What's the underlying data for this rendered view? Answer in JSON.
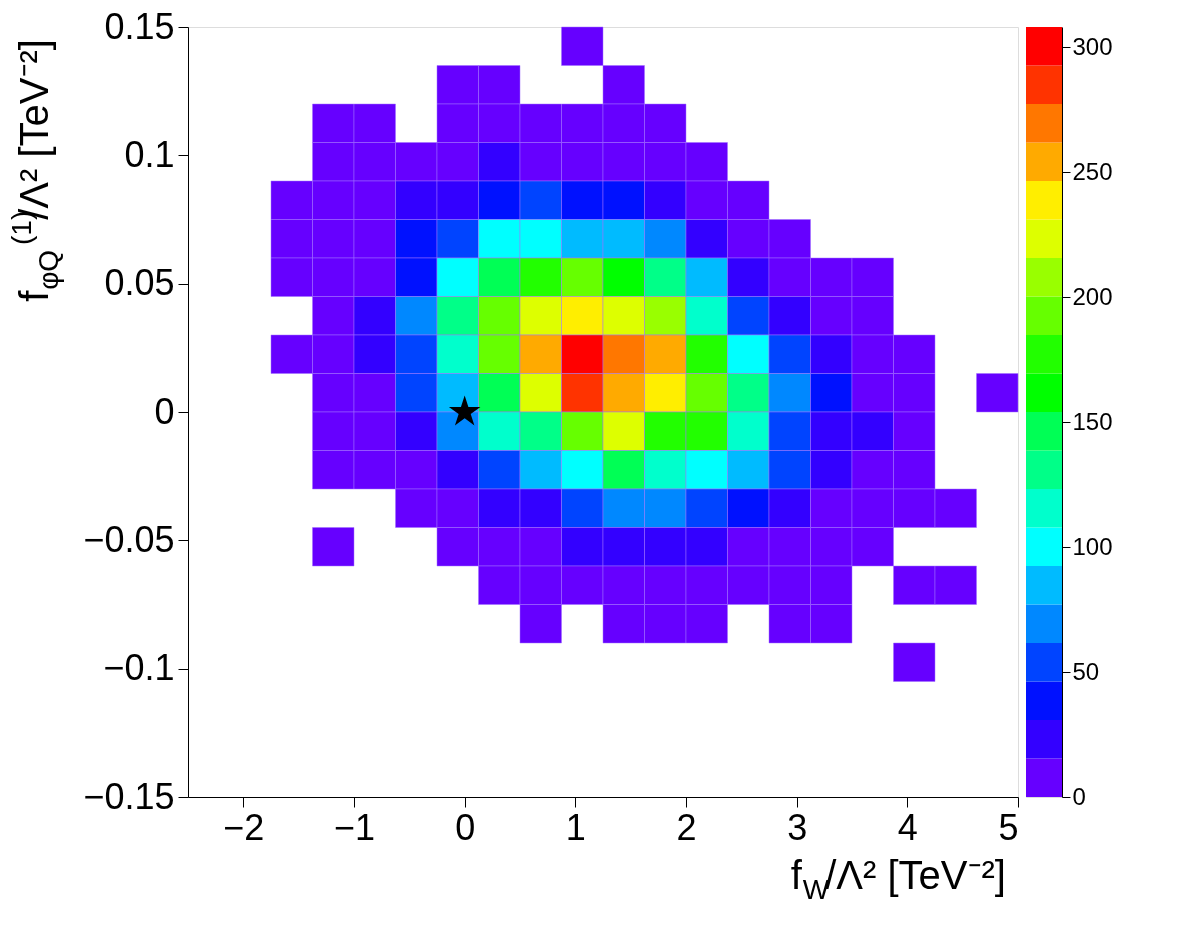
{
  "chart_data": {
    "type": "heatmap",
    "xlabel": "f$_{W}$/Λ² [TeV⁻²]",
    "ylabel": "f$_{φQ}$$^{(1)}$/Λ² [TeV⁻²]",
    "x": [
      -2.3125,
      -1.9375,
      -1.5625,
      -1.1875,
      -0.8125,
      -0.4375,
      -0.0625,
      0.3125,
      0.6875,
      1.0625,
      1.4375,
      1.8125,
      2.1875,
      2.5625,
      2.9375,
      3.3125,
      3.6875,
      4.0625,
      4.4375,
      4.8125
    ],
    "y": [
      0.1425,
      0.1275,
      0.1125,
      0.0975,
      0.0825,
      0.0675,
      0.0525,
      0.0375,
      0.0225,
      0.0075,
      -0.0075,
      -0.0225,
      -0.0375,
      -0.0525,
      -0.0675,
      -0.0825,
      -0.0975
    ],
    "cells": [
      [
        null,
        null,
        null,
        null,
        null,
        null,
        null,
        null,
        null,
        8,
        null,
        null,
        null,
        null,
        null,
        null,
        null,
        null,
        null,
        null
      ],
      [
        null,
        null,
        null,
        null,
        null,
        null,
        8,
        8,
        null,
        null,
        8,
        null,
        null,
        null,
        null,
        null,
        null,
        null,
        null,
        null
      ],
      [
        null,
        null,
        null,
        8,
        8,
        null,
        8,
        8,
        8,
        8,
        8,
        8,
        null,
        null,
        null,
        null,
        null,
        null,
        null,
        null
      ],
      [
        null,
        null,
        null,
        8,
        8,
        8,
        8,
        23,
        8,
        8,
        8,
        8,
        8,
        null,
        null,
        null,
        null,
        null,
        null,
        null
      ],
      [
        null,
        null,
        8,
        8,
        8,
        23,
        23,
        39,
        54,
        39,
        39,
        23,
        8,
        8,
        null,
        null,
        null,
        null,
        null,
        null
      ],
      [
        null,
        null,
        8,
        8,
        8,
        39,
        54,
        100,
        100,
        85,
        85,
        69,
        23,
        8,
        8,
        null,
        null,
        null,
        null,
        null
      ],
      [
        null,
        null,
        8,
        8,
        8,
        39,
        100,
        146,
        177,
        192,
        162,
        131,
        85,
        23,
        8,
        8,
        8,
        null,
        null,
        null
      ],
      [
        null,
        null,
        null,
        8,
        23,
        69,
        131,
        192,
        223,
        239,
        223,
        208,
        116,
        54,
        23,
        8,
        8,
        null,
        null,
        null
      ],
      [
        null,
        null,
        8,
        8,
        23,
        54,
        116,
        192,
        254,
        300,
        270,
        254,
        177,
        100,
        54,
        23,
        8,
        8,
        null,
        null
      ],
      [
        null,
        null,
        null,
        8,
        8,
        54,
        85,
        146,
        223,
        285,
        254,
        239,
        192,
        131,
        69,
        39,
        8,
        8,
        null,
        8
      ],
      [
        null,
        null,
        null,
        8,
        8,
        23,
        69,
        116,
        131,
        192,
        223,
        177,
        177,
        116,
        54,
        23,
        23,
        8,
        null,
        null
      ],
      [
        null,
        null,
        null,
        8,
        8,
        8,
        23,
        54,
        85,
        100,
        146,
        116,
        100,
        85,
        54,
        23,
        8,
        8,
        null,
        null
      ],
      [
        null,
        null,
        null,
        null,
        null,
        8,
        8,
        23,
        23,
        54,
        69,
        69,
        54,
        39,
        23,
        8,
        8,
        8,
        8,
        null
      ],
      [
        null,
        null,
        null,
        8,
        null,
        null,
        8,
        8,
        8,
        23,
        23,
        23,
        23,
        8,
        8,
        8,
        8,
        null,
        null,
        null
      ],
      [
        null,
        null,
        null,
        null,
        null,
        null,
        null,
        8,
        8,
        8,
        8,
        8,
        8,
        8,
        8,
        8,
        null,
        8,
        8,
        null
      ],
      [
        null,
        null,
        null,
        null,
        null,
        null,
        null,
        null,
        8,
        null,
        8,
        8,
        8,
        null,
        8,
        8,
        null,
        null,
        null,
        null
      ],
      [
        null,
        null,
        null,
        null,
        null,
        null,
        null,
        null,
        null,
        null,
        null,
        null,
        null,
        null,
        null,
        null,
        null,
        8,
        null,
        null
      ]
    ],
    "colors": [
      "#6600ff",
      "#3300ff",
      "#0011ff",
      "#0044ff",
      "#0088ff",
      "#00bbff",
      "#00ffff",
      "#00ffcc",
      "#00ff88",
      "#00ff55",
      "#00ff00",
      "#22ff00",
      "#66ff00",
      "#99ff00",
      "#ddff00",
      "#ffee00",
      "#ffaa00",
      "#ff7700",
      "#ff3300",
      "#ff0000"
    ],
    "clim": [
      0,
      308
    ],
    "cticks": [
      0,
      50,
      100,
      150,
      200,
      250,
      300
    ],
    "xlim": [
      -2.5,
      5
    ],
    "xticks": [
      {
        "value": -2,
        "label": "−2"
      },
      {
        "value": -1,
        "label": "−1"
      },
      0,
      1,
      2,
      3,
      4,
      5
    ],
    "ylim": [
      -0.15,
      0.15
    ],
    "yticks": [
      {
        "value": -0.15,
        "label": "−0.15"
      },
      {
        "value": -0.1,
        "label": "−0.1"
      },
      {
        "value": -0.05,
        "label": "−0.05"
      },
      0,
      0.05,
      0.1,
      0.15
    ],
    "grid": false,
    "series": [
      {
        "type": "scatter",
        "x": [
          0
        ],
        "values": [
          0
        ],
        "color": "#000000",
        "marker": "star"
      }
    ]
  }
}
